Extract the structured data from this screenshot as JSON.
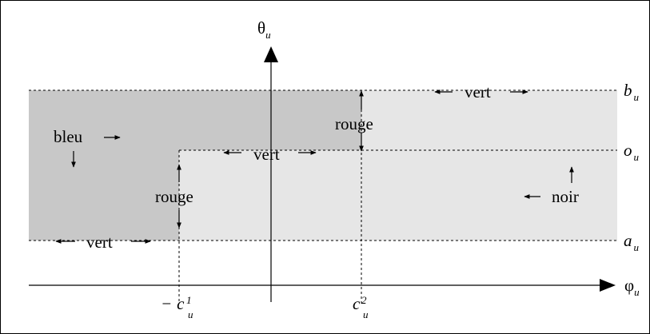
{
  "axes": {
    "vertical": {
      "symbol": "θ",
      "subscript": "u"
    },
    "horizontal": {
      "symbol": "φ",
      "subscript": "u"
    }
  },
  "levels": {
    "b": {
      "symbol": "b",
      "subscript": "u"
    },
    "o": {
      "symbol": "o",
      "subscript": "u"
    },
    "a": {
      "symbol": "a",
      "subscript": "u"
    }
  },
  "ticks": {
    "c1": {
      "prefix": "−",
      "symbol": "c",
      "superscript": "1",
      "subscript": "u"
    },
    "c2": {
      "symbol": "c",
      "superscript": "2",
      "subscript": "u"
    }
  },
  "regions": {
    "bleu": "bleu",
    "vert_top": "vert",
    "vert_mid": "vert",
    "vert_bottom": "vert",
    "rouge_top": "rouge",
    "rouge_left": "rouge",
    "noir": "noir"
  },
  "colors": {
    "dark_region": "#c8c8c8",
    "light_region": "#e6e6e6"
  }
}
